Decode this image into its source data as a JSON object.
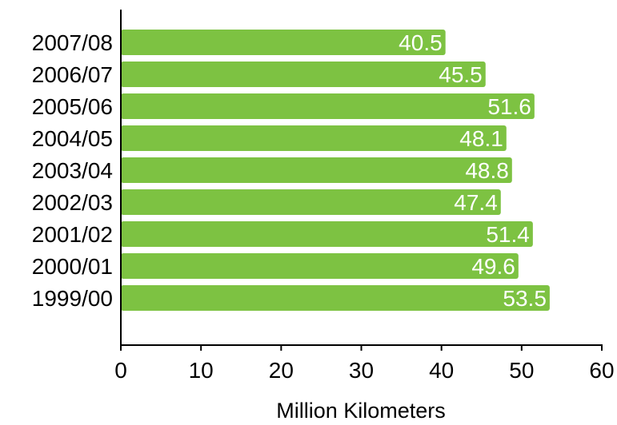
{
  "chart_data": {
    "type": "bar",
    "orientation": "horizontal",
    "categories": [
      "2007/08",
      "2006/07",
      "2005/06",
      "2004/05",
      "2003/04",
      "2002/03",
      "2001/02",
      "2000/01",
      "1999/00"
    ],
    "values": [
      40.5,
      45.5,
      51.6,
      48.1,
      48.8,
      47.4,
      51.4,
      49.6,
      53.5
    ],
    "data_labels": [
      "40.5",
      "45.5",
      "51.6",
      "48.1",
      "48.8",
      "47.4",
      "51.4",
      "49.6",
      "53.5"
    ],
    "xlabel": "Million Kilometers",
    "ylabel": "",
    "xlim": [
      0,
      60
    ],
    "xticks": [
      0,
      10,
      20,
      30,
      40,
      50,
      60
    ],
    "xtick_labels": [
      "0",
      "10",
      "20",
      "30",
      "40",
      "50",
      "60"
    ],
    "grid": false,
    "legend": "none",
    "colors": {
      "bar": "#7dc242",
      "axis": "#000000",
      "label_text": "#000000",
      "data_label_text": "#ffffff"
    }
  }
}
